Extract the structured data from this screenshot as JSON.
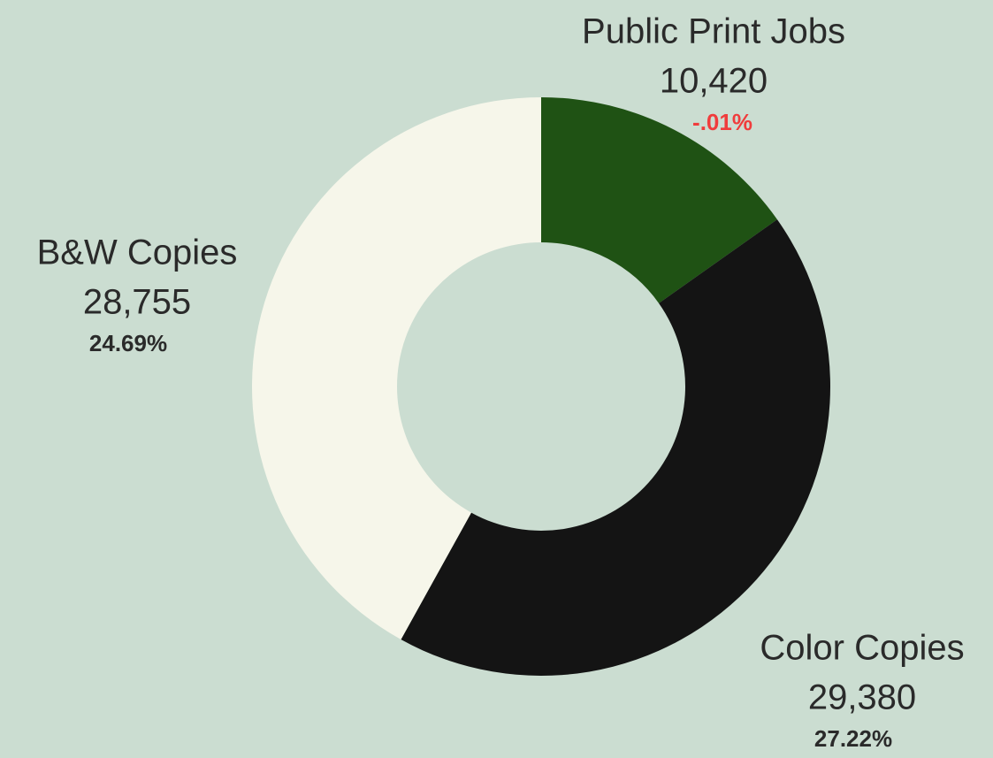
{
  "chart_data": {
    "type": "donut",
    "categories": [
      "Public Print Jobs",
      "Color Copies",
      "B&W Copies"
    ],
    "values": [
      10420,
      29380,
      28755
    ],
    "value_labels": [
      "10,420",
      "29,380",
      "28,755"
    ],
    "change_labels": [
      "-.01%",
      "27.22%",
      "24.69%"
    ],
    "change_colors": [
      "#f03c3c",
      "#2a2a2a",
      "#2a2a2a"
    ],
    "colors": [
      "#1f5214",
      "#141414",
      "#f6f6ea"
    ]
  }
}
